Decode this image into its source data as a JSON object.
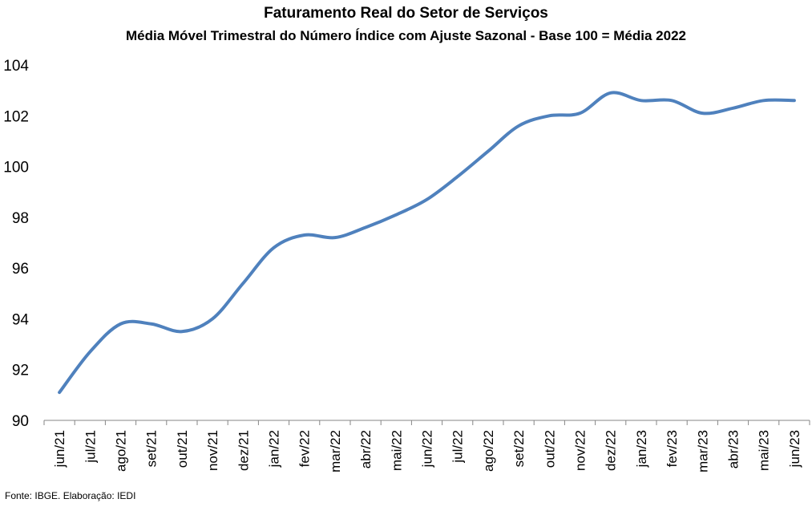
{
  "chart_data": {
    "type": "line",
    "title": "Faturamento Real do Setor de Serviços",
    "subtitle": "Média Móvel Trimestral do Número Índice com Ajuste Sazonal - Base 100 = Média 2022",
    "xlabel": "",
    "ylabel": "",
    "ylim": [
      90,
      104
    ],
    "yticks": [
      90,
      92,
      94,
      96,
      98,
      100,
      102,
      104
    ],
    "grid": false,
    "legend": "none",
    "line_color": "#4F81BD",
    "categories": [
      "jun/21",
      "jul/21",
      "ago/21",
      "set/21",
      "out/21",
      "nov/21",
      "dez/21",
      "jan/22",
      "fev/22",
      "mar/22",
      "abr/22",
      "mai/22",
      "jun/22",
      "jul/22",
      "ago/22",
      "set/22",
      "out/22",
      "nov/22",
      "dez/22",
      "jan/23",
      "fev/23",
      "mar/23",
      "abr/23",
      "mai/23",
      "jun/23"
    ],
    "series": [
      {
        "values": [
          91.1,
          92.7,
          93.8,
          93.8,
          93.5,
          94.0,
          95.4,
          96.8,
          97.3,
          97.2,
          97.6,
          98.1,
          98.7,
          99.6,
          100.6,
          101.6,
          102.0,
          102.1,
          102.9,
          102.6,
          102.6,
          102.1,
          102.3,
          102.6,
          102.6
        ]
      }
    ]
  },
  "source": "Fonte: IBGE. Elaboração: IEDI"
}
